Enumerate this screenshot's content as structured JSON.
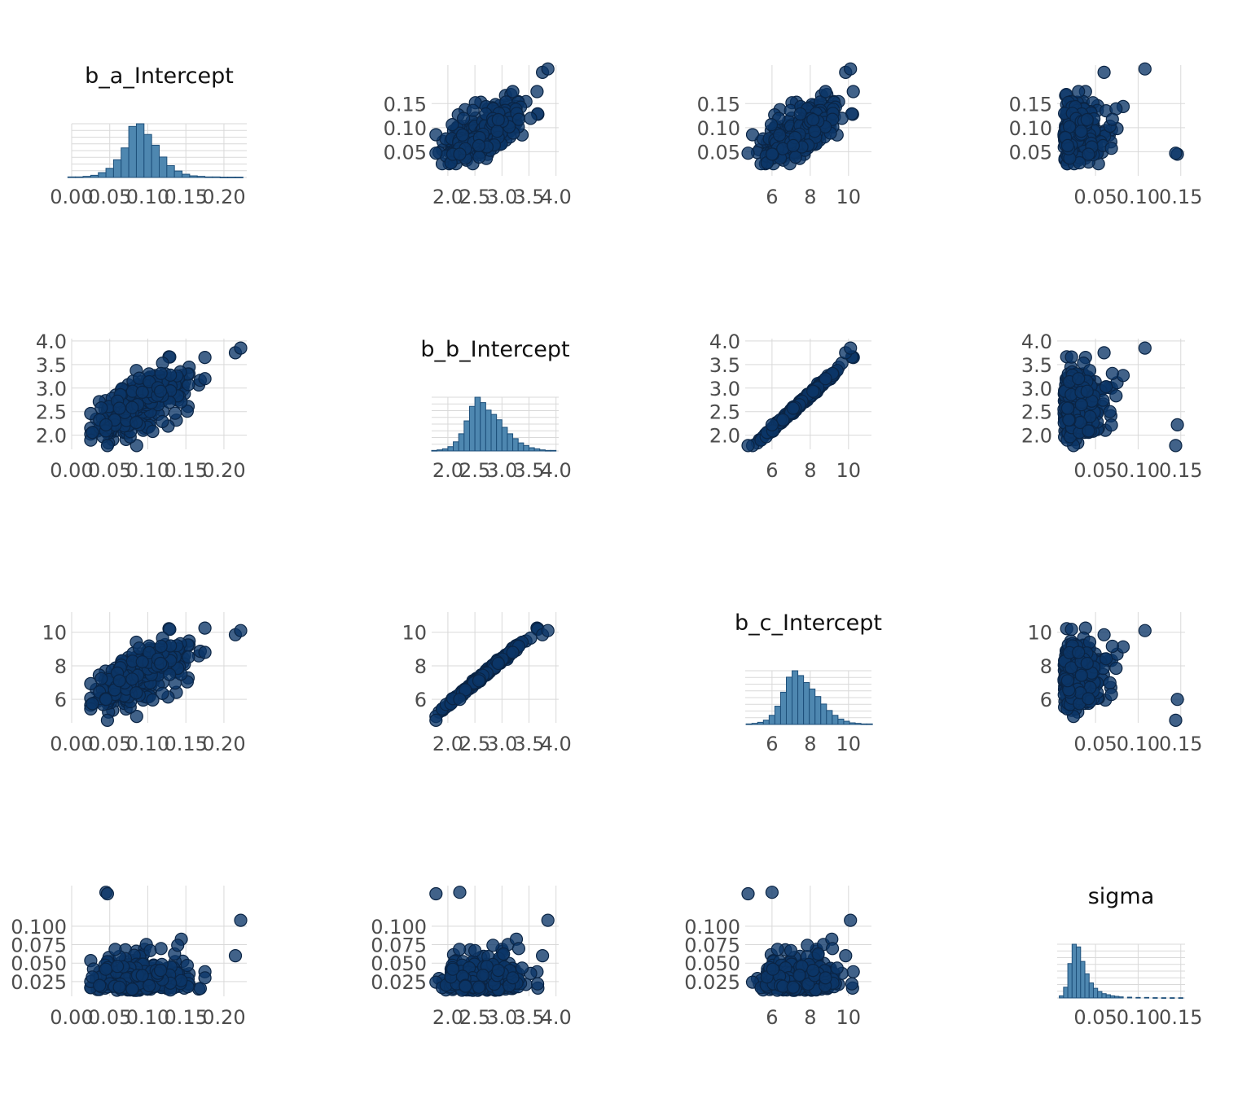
{
  "chart_data": {
    "type": "scatter",
    "layout": "pairs-matrix",
    "variables": [
      "b_a_Intercept",
      "b_b_Intercept",
      "b_c_Intercept",
      "sigma"
    ],
    "diagonal_type": "histogram",
    "offdiagonal_type": "scatter",
    "colors": {
      "points": "#0b3668",
      "point_edge": "#0a2444",
      "hist_fill": "#4e87b0",
      "hist_edge": "#1d4f7a",
      "grid": "#d9d9d9",
      "tick_text": "#4d4d4d"
    },
    "axes": {
      "b_a_Intercept": {
        "range": [
          0.0,
          0.23
        ],
        "ticks": [
          "0.00",
          "0.05",
          "0.10",
          "0.15",
          "0.20"
        ]
      },
      "b_b_Intercept": {
        "range": [
          1.7,
          4.05
        ],
        "ticks": [
          "2.0",
          "2.5",
          "3.0",
          "3.5",
          "4.0"
        ]
      },
      "b_c_Intercept": {
        "range": [
          4.6,
          11.2
        ],
        "ticks": [
          "6",
          "8",
          "10"
        ]
      },
      "sigma": {
        "range": [
          0.005,
          0.155
        ],
        "ticks": [
          "0.05",
          "0.10",
          "0.15"
        ]
      }
    },
    "row_y_ticks": {
      "b_a_Intercept": [
        "0.05",
        "0.10",
        "0.15"
      ],
      "b_b_Intercept": [
        "2.0",
        "2.5",
        "3.0",
        "3.5",
        "4.0"
      ],
      "b_c_Intercept": [
        "6",
        "8",
        "10"
      ],
      "sigma": [
        "0.025",
        "0.050",
        "0.075",
        "0.100"
      ]
    },
    "histograms": {
      "b_a_Intercept": {
        "x": [
          0.0,
          0.01,
          0.02,
          0.03,
          0.04,
          0.05,
          0.06,
          0.07,
          0.08,
          0.09,
          0.1,
          0.11,
          0.12,
          0.13,
          0.14,
          0.15,
          0.16,
          0.17,
          0.18,
          0.19,
          0.2,
          0.21,
          0.22
        ],
        "counts": [
          1,
          1,
          2,
          4,
          9,
          17,
          33,
          55,
          95,
          100,
          80,
          60,
          38,
          22,
          12,
          6,
          3,
          2,
          1,
          1,
          0.5,
          0.5,
          0.5
        ]
      },
      "b_b_Intercept": {
        "x": [
          1.75,
          1.85,
          1.95,
          2.05,
          2.15,
          2.25,
          2.35,
          2.45,
          2.55,
          2.65,
          2.75,
          2.85,
          2.95,
          3.05,
          3.15,
          3.25,
          3.35,
          3.45,
          3.55,
          3.65,
          3.75,
          3.85,
          3.95
        ],
        "counts": [
          1,
          2,
          4,
          8,
          17,
          32,
          56,
          83,
          100,
          90,
          76,
          68,
          58,
          44,
          32,
          23,
          15,
          10,
          6,
          4,
          2,
          1,
          1
        ]
      },
      "b_c_Intercept": {
        "x": [
          4.8,
          5.1,
          5.4,
          5.7,
          6.0,
          6.3,
          6.6,
          6.9,
          7.2,
          7.5,
          7.8,
          8.1,
          8.4,
          8.7,
          9.0,
          9.3,
          9.6,
          9.9,
          10.2,
          10.5,
          10.8,
          11.1
        ],
        "counts": [
          1,
          2,
          4,
          8,
          17,
          34,
          60,
          88,
          100,
          91,
          78,
          66,
          52,
          38,
          26,
          17,
          10,
          6,
          3,
          2,
          1,
          1
        ]
      },
      "sigma": {
        "x": [
          0.01,
          0.015,
          0.02,
          0.025,
          0.03,
          0.035,
          0.04,
          0.045,
          0.05,
          0.055,
          0.06,
          0.065,
          0.07,
          0.075,
          0.08,
          0.09,
          0.1,
          0.11,
          0.12,
          0.13,
          0.14,
          0.15
        ],
        "counts": [
          4,
          20,
          64,
          100,
          95,
          68,
          45,
          28,
          18,
          12,
          8,
          6,
          4,
          3,
          2,
          1.5,
          1,
          1,
          0.6,
          0.5,
          0.5,
          0.5
        ]
      }
    },
    "scatter_summary": {
      "b_b_vs_b_c": "near-perfect linear relationship",
      "sigma_outliers": "a few draws near sigma = 0.145"
    }
  }
}
